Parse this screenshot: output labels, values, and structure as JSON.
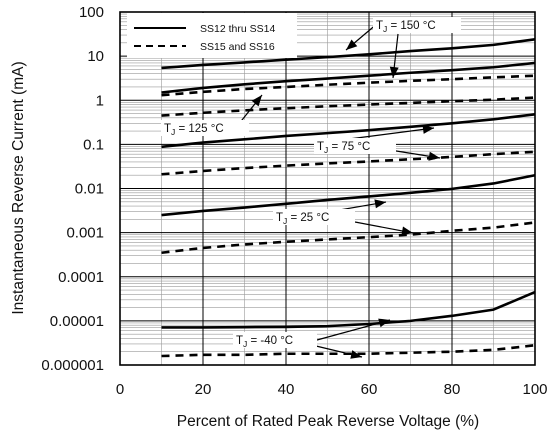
{
  "chart_data": {
    "type": "line",
    "title": "",
    "xlabel": "Percent of Rated Peak Reverse Voltage (%)",
    "ylabel": "Instantaneous Reverse Current (mA)",
    "xlim": [
      0,
      100
    ],
    "ylim": [
      1e-06,
      100
    ],
    "y_scale": "log",
    "grid": true,
    "x_ticks": [
      "0",
      "20",
      "40",
      "60",
      "80",
      "100"
    ],
    "y_ticks": [
      "0.000001",
      "0.00001",
      "0.0001",
      "0.001",
      "0.01",
      "0.1",
      "1",
      "10",
      "100"
    ],
    "legend": {
      "position": "top-left",
      "entries": [
        {
          "label": "SS12 thru SS14",
          "style": "solid"
        },
        {
          "label": "SS15 and SS16",
          "style": "dashed"
        }
      ]
    },
    "annotations": [
      {
        "tj": "150",
        "label": "T",
        "sub": "J",
        "rest": " = 150 °C"
      },
      {
        "tj": "125",
        "label": "T",
        "sub": "J",
        "rest": " = 125 °C"
      },
      {
        "tj": "75",
        "label": "T",
        "sub": "J",
        "rest": " = 75 °C"
      },
      {
        "tj": "25",
        "label": "T",
        "sub": "J",
        "rest": " = 25 °C"
      },
      {
        "tj": "-40",
        "label": "T",
        "sub": "J",
        "rest": " = -40 °C"
      }
    ],
    "series": [
      {
        "group": "SS12 thru SS14",
        "tj": "150",
        "style": "solid",
        "x": [
          10,
          20,
          30,
          40,
          50,
          60,
          70,
          80,
          90,
          100
        ],
        "y": [
          5.4,
          6.3,
          7.2,
          8.3,
          9.5,
          11,
          13,
          15,
          18,
          24
        ]
      },
      {
        "group": "SS12 thru SS14",
        "tj": "125",
        "style": "solid",
        "x": [
          10,
          20,
          30,
          40,
          50,
          60,
          70,
          80,
          90,
          100
        ],
        "y": [
          1.5,
          1.9,
          2.3,
          2.7,
          3.1,
          3.6,
          4.2,
          4.8,
          5.6,
          7.0
        ]
      },
      {
        "group": "SS15 and SS16",
        "tj": "150",
        "style": "dashed",
        "x": [
          10,
          20,
          30,
          40,
          50,
          60,
          70,
          80,
          90,
          100
        ],
        "y": [
          1.3,
          1.55,
          1.8,
          2.0,
          2.25,
          2.5,
          2.75,
          3.0,
          3.3,
          3.6
        ]
      },
      {
        "group": "SS15 and SS16",
        "tj": "125",
        "style": "dashed",
        "x": [
          10,
          20,
          30,
          40,
          50,
          60,
          70,
          80,
          90,
          100
        ],
        "y": [
          0.45,
          0.52,
          0.59,
          0.66,
          0.73,
          0.8,
          0.87,
          0.95,
          1.03,
          1.15
        ]
      },
      {
        "group": "SS12 thru SS14",
        "tj": "75",
        "style": "solid",
        "x": [
          10,
          20,
          30,
          40,
          50,
          60,
          70,
          80,
          90,
          100
        ],
        "y": [
          0.088,
          0.11,
          0.13,
          0.155,
          0.18,
          0.21,
          0.25,
          0.3,
          0.37,
          0.48
        ]
      },
      {
        "group": "SS15 and SS16",
        "tj": "75",
        "style": "dashed",
        "x": [
          10,
          20,
          30,
          40,
          50,
          60,
          70,
          80,
          90,
          100
        ],
        "y": [
          0.021,
          0.025,
          0.029,
          0.033,
          0.037,
          0.041,
          0.046,
          0.052,
          0.06,
          0.068
        ]
      },
      {
        "group": "SS12 thru SS14",
        "tj": "25",
        "style": "solid",
        "x": [
          10,
          20,
          30,
          40,
          50,
          60,
          70,
          80,
          90,
          100
        ],
        "y": [
          0.0025,
          0.0031,
          0.0037,
          0.0045,
          0.0055,
          0.0066,
          0.008,
          0.0098,
          0.013,
          0.02
        ]
      },
      {
        "group": "SS15 and SS16",
        "tj": "25",
        "style": "dashed",
        "x": [
          10,
          20,
          30,
          40,
          50,
          60,
          70,
          80,
          90,
          100
        ],
        "y": [
          0.00035,
          0.00045,
          0.00054,
          0.00062,
          0.0007,
          0.00079,
          0.0009,
          0.0011,
          0.0013,
          0.0017
        ]
      },
      {
        "group": "SS12 thru SS14",
        "tj": "-40",
        "style": "solid",
        "x": [
          10,
          20,
          30,
          40,
          50,
          60,
          70,
          80,
          90,
          100
        ],
        "y": [
          7.1e-06,
          7.1e-06,
          7.2e-06,
          7.3e-06,
          7.6e-06,
          8.5e-06,
          1e-05,
          1.3e-05,
          1.8e-05,
          4.5e-05
        ]
      },
      {
        "group": "SS15 and SS16",
        "tj": "-40",
        "style": "dashed",
        "x": [
          10,
          20,
          30,
          40,
          50,
          60,
          70,
          80,
          90,
          100
        ],
        "y": [
          1.6e-06,
          1.7e-06,
          1.7e-06,
          1.8e-06,
          1.8e-06,
          1.8e-06,
          1.9e-06,
          2e-06,
          2.2e-06,
          2.8e-06
        ]
      }
    ]
  }
}
